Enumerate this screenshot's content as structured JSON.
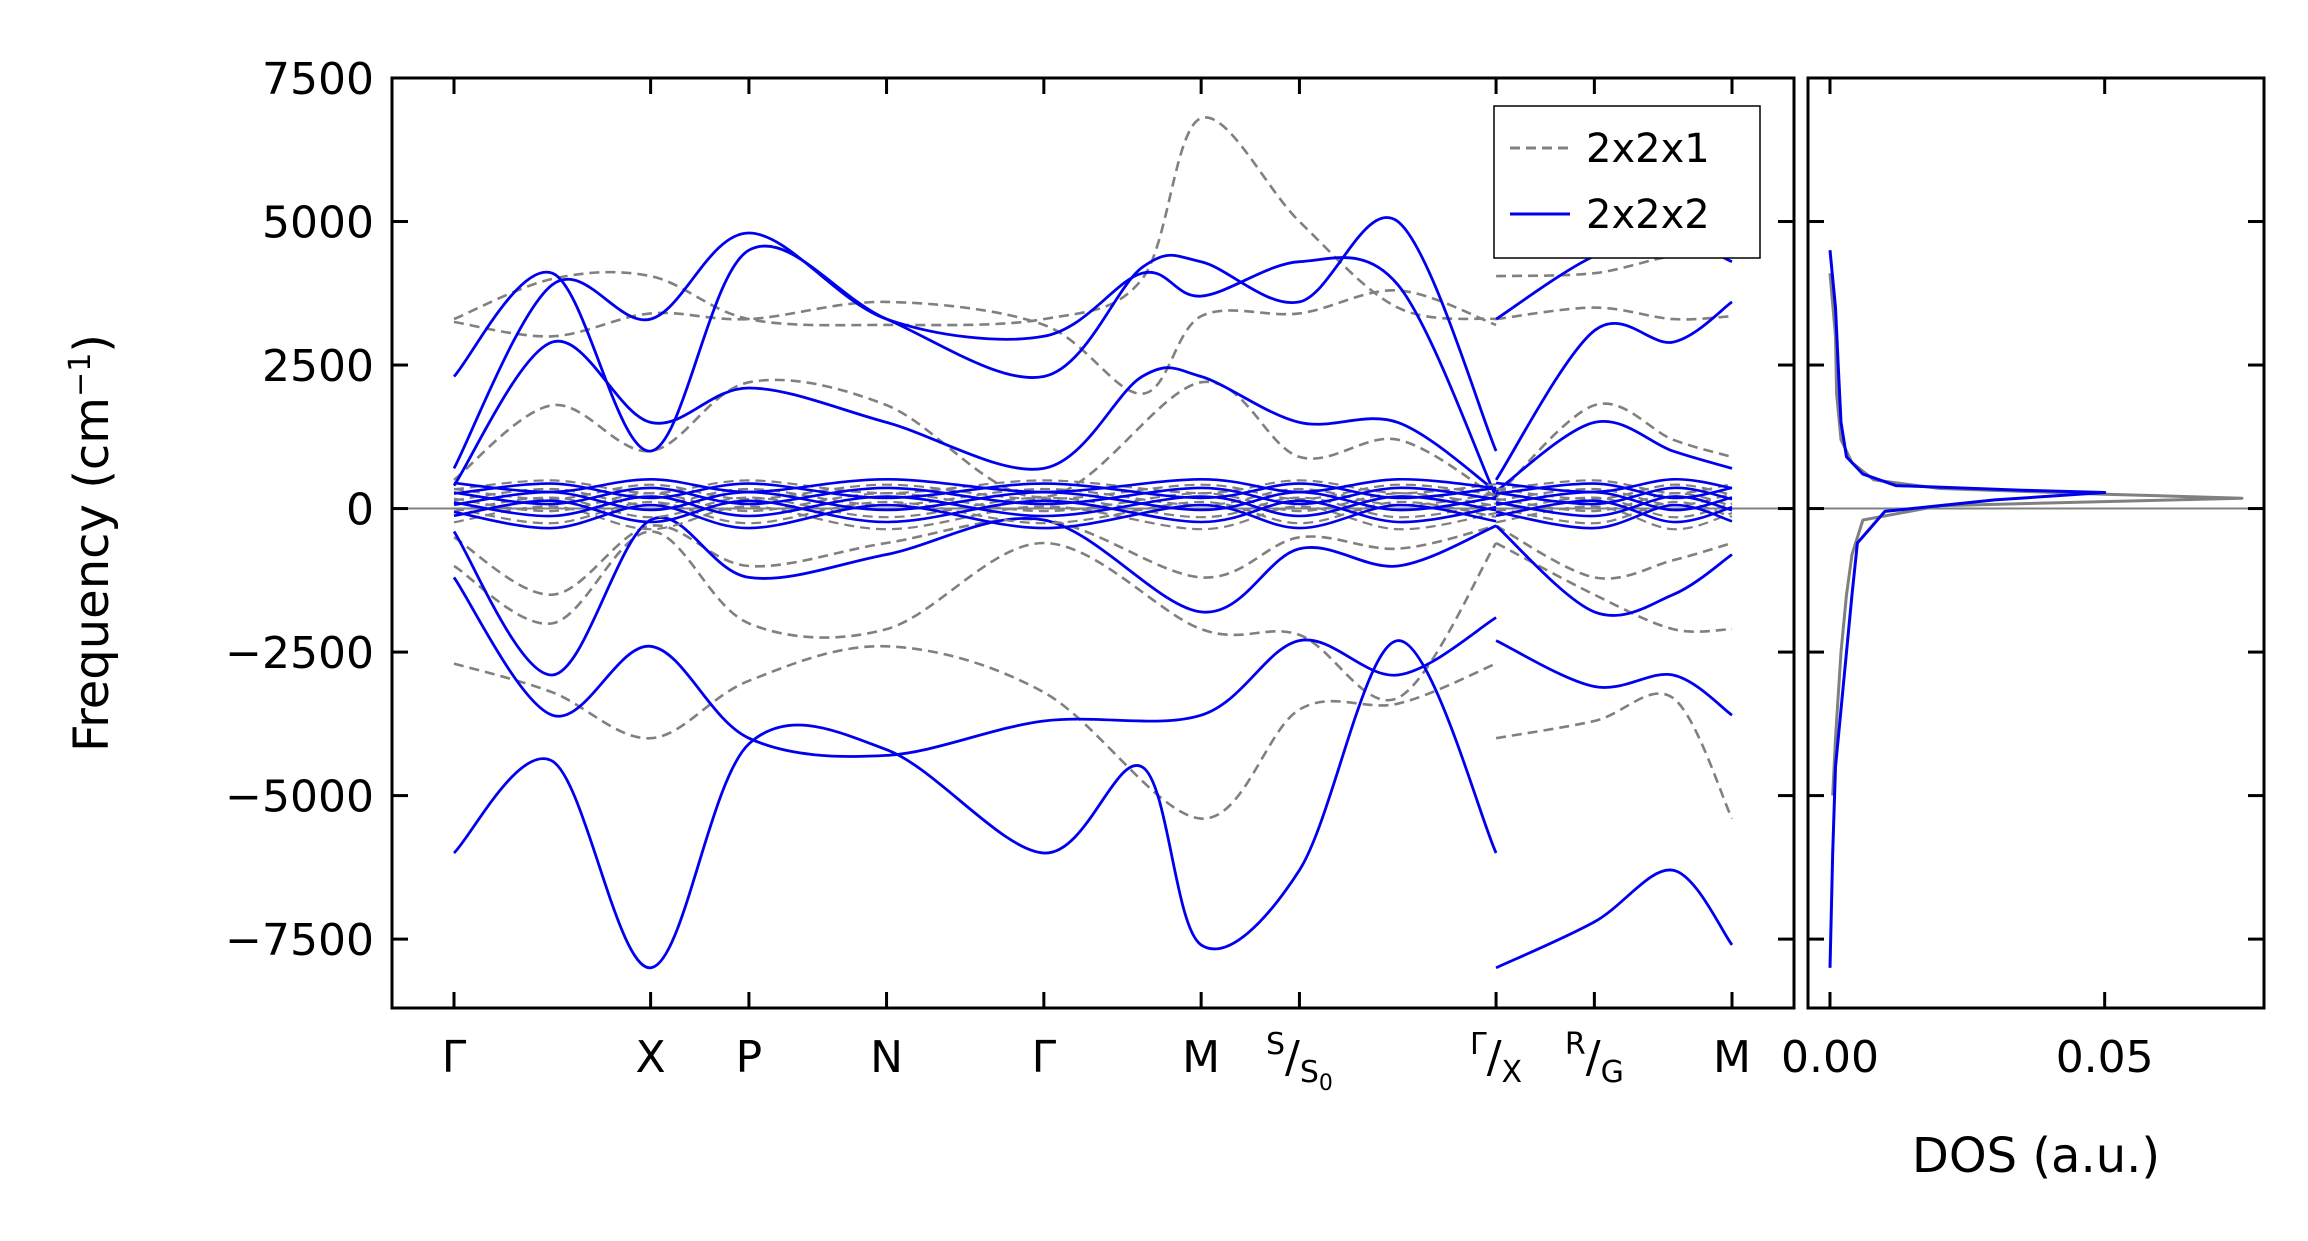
{
  "chart_data": [
    {
      "type": "line",
      "panel": "band-structure",
      "ylabel": "Frequency (cm",
      "ylabel_exponent": "−1",
      "ylabel_close": ")",
      "ylim": [
        -8700,
        7500
      ],
      "yticks": [
        7500,
        5000,
        2500,
        0,
        -2500,
        -5000,
        -7500
      ],
      "ytick_labels": [
        "7500",
        "5000",
        "2500",
        "0",
        "−2500",
        "−5000",
        "−7500"
      ],
      "grid": false,
      "legend_position": "top-right",
      "kpath_ticks": [
        {
          "label": "Γ",
          "x": 0.0
        },
        {
          "label": "X",
          "x": 1.0
        },
        {
          "label": "P",
          "x": 1.5
        },
        {
          "label": "N",
          "x": 2.2
        },
        {
          "label": "Γ",
          "x": 3.0
        },
        {
          "label": "M",
          "x": 3.8
        },
        {
          "label_main": "S",
          "label_sub": "S",
          "label_sub_index": "0",
          "x": 4.3
        },
        {
          "label_main": "Γ",
          "label_sub": "X",
          "x": 5.3
        },
        {
          "label_main": "R",
          "label_sub": "G",
          "x": 5.8
        },
        {
          "label": "M",
          "x": 6.5
        }
      ],
      "segment_breaks": [
        5.3
      ],
      "series": [
        {
          "name": "2x2x1",
          "color": "#808080",
          "style": "dashed",
          "bands": [
            {
              "x": [
                0,
                0.5,
                1.0,
                1.5,
                2.2,
                3.0,
                3.5,
                3.8,
                4.3,
                4.8,
                5.3
              ],
              "y": [
                3300,
                4000,
                4050,
                3300,
                3200,
                3300,
                4000,
                6800,
                5000,
                3500,
                3300
              ]
            },
            {
              "x": [
                5.3,
                5.8,
                6.2,
                6.5
              ],
              "y": [
                4050,
                4100,
                4400,
                4400
              ]
            },
            {
              "x": [
                0,
                0.5,
                1.0,
                1.5,
                2.2,
                3.0,
                3.5,
                3.8,
                4.3,
                4.8,
                5.3
              ],
              "y": [
                3250,
                3000,
                3400,
                3300,
                3600,
                3200,
                2000,
                3350,
                3400,
                3800,
                3200
              ]
            },
            {
              "x": [
                5.3,
                5.8,
                6.2,
                6.5
              ],
              "y": [
                3300,
                3500,
                3300,
                3350
              ]
            },
            {
              "x": [
                0,
                0.5,
                1.0,
                1.5,
                2.2,
                3.0,
                3.8,
                4.3,
                4.8,
                5.3
              ],
              "y": [
                500,
                1800,
                1000,
                2200,
                1800,
                200,
                2200,
                900,
                1200,
                200
              ]
            },
            {
              "x": [
                5.3,
                5.8,
                6.2,
                6.5
              ],
              "y": [
                200,
                1800,
                1200,
                900
              ]
            },
            {
              "x": [
                0,
                0.5,
                1.0,
                1.5,
                2.2,
                3.0,
                3.8,
                4.3,
                4.8,
                5.3
              ],
              "y": [
                -500,
                -1500,
                -300,
                -1000,
                -600,
                -200,
                -1200,
                -500,
                -700,
                -300
              ]
            },
            {
              "x": [
                5.3,
                5.8,
                6.2,
                6.5
              ],
              "y": [
                -300,
                -1200,
                -900,
                -600
              ]
            },
            {
              "x": [
                0,
                0.5,
                1.0,
                1.5,
                2.2,
                3.0,
                3.8,
                4.3,
                4.8,
                5.3
              ],
              "y": [
                -1000,
                -2000,
                -400,
                -2000,
                -2100,
                -600,
                -2100,
                -2200,
                -3300,
                -600
              ]
            },
            {
              "x": [
                5.3,
                5.8,
                6.2,
                6.5
              ],
              "y": [
                -600,
                -1500,
                -2100,
                -2100
              ]
            },
            {
              "x": [
                0,
                0.5,
                1.0,
                1.5,
                2.2,
                3.0,
                3.8,
                4.3,
                4.8,
                5.3
              ],
              "y": [
                -2700,
                -3200,
                -4000,
                -3000,
                -2400,
                -3200,
                -5400,
                -3500,
                -3400,
                -2700
              ]
            },
            {
              "x": [
                5.3,
                5.8,
                6.2,
                6.5
              ],
              "y": [
                -4000,
                -3700,
                -3300,
                -5400
              ]
            }
          ]
        },
        {
          "name": "2x2x2",
          "color": "#0000ee",
          "style": "solid",
          "bands": [
            {
              "x": [
                0,
                0.5,
                1.0,
                1.5,
                2.2,
                3.0,
                3.5,
                3.8,
                4.3,
                4.8,
                5.3
              ],
              "y": [
                2300,
                4100,
                1000,
                4500,
                3300,
                2300,
                4200,
                4300,
                3600,
                5000,
                1000
              ]
            },
            {
              "x": [
                5.3,
                5.8,
                6.2,
                6.5
              ],
              "y": [
                3300,
                4400,
                4700,
                4300
              ]
            },
            {
              "x": [
                0,
                0.5,
                1.0,
                1.5,
                2.2,
                3.0,
                3.5,
                3.8,
                4.3,
                4.8,
                5.3
              ],
              "y": [
                700,
                3900,
                3300,
                4800,
                3300,
                3000,
                4100,
                3700,
                4300,
                3900,
                200
              ]
            },
            {
              "x": [
                5.3,
                5.8,
                6.2,
                6.5
              ],
              "y": [
                500,
                3100,
                2900,
                3600
              ]
            },
            {
              "x": [
                0,
                0.5,
                1.0,
                1.5,
                2.2,
                3.0,
                3.5,
                3.8,
                4.3,
                4.8,
                5.3
              ],
              "y": [
                400,
                2900,
                1500,
                2100,
                1500,
                700,
                2300,
                2300,
                1500,
                1500,
                300
              ]
            },
            {
              "x": [
                5.3,
                5.8,
                6.2,
                6.5
              ],
              "y": [
                300,
                1500,
                1000,
                700
              ]
            },
            {
              "x": [
                0,
                0.5,
                1.0,
                1.5,
                2.2,
                3.0,
                3.8,
                4.3,
                4.8,
                5.3
              ],
              "y": [
                -400,
                -2900,
                -200,
                -1200,
                -800,
                -200,
                -1800,
                -700,
                -1000,
                -300
              ]
            },
            {
              "x": [
                5.3,
                5.8,
                6.2,
                6.5
              ],
              "y": [
                -300,
                -1800,
                -1500,
                -800
              ]
            },
            {
              "x": [
                0,
                0.5,
                1.0,
                1.5,
                2.2,
                3.0,
                3.8,
                4.3,
                4.8,
                5.3
              ],
              "y": [
                -1200,
                -3600,
                -2400,
                -4000,
                -4300,
                -3700,
                -3600,
                -2300,
                -2900,
                -1900
              ]
            },
            {
              "x": [
                5.3,
                5.8,
                6.2,
                6.5
              ],
              "y": [
                -2300,
                -3100,
                -2900,
                -3600
              ]
            },
            {
              "x": [
                0,
                0.5,
                1.0,
                1.5,
                2.2,
                3.0,
                3.5,
                3.8,
                4.3,
                4.8,
                5.3
              ],
              "y": [
                -6000,
                -4400,
                -8000,
                -4100,
                -4200,
                -6000,
                -4500,
                -7600,
                -6300,
                -2300,
                -6000
              ]
            },
            {
              "x": [
                5.3,
                5.8,
                6.2,
                6.5
              ],
              "y": [
                -8000,
                -7200,
                -6300,
                -7600
              ]
            }
          ]
        }
      ]
    },
    {
      "type": "line",
      "panel": "dos",
      "xlabel": "DOS (a.u.)",
      "xlim": [
        -0.004,
        0.079
      ],
      "xticks": [
        0.0,
        0.05
      ],
      "xtick_labels": [
        "0.00",
        "0.05"
      ],
      "ylim": [
        -8700,
        7500
      ],
      "series": [
        {
          "name": "2x2x1",
          "color": "#808080",
          "style": "solid",
          "x": [
            0.0,
            0.001,
            0.0012,
            0.002,
            0.004,
            0.008,
            0.02,
            0.05,
            0.075,
            0.02,
            0.006,
            0.004,
            0.003,
            0.002,
            0.001,
            0.0005
          ],
          "y": [
            4100,
            3000,
            2000,
            1200,
            800,
            500,
            350,
            250,
            180,
            50,
            -200,
            -800,
            -1500,
            -2500,
            -4000,
            -5000
          ]
        },
        {
          "name": "2x2x2",
          "color": "#0000ee",
          "style": "solid",
          "x": [
            0.0,
            0.001,
            0.0015,
            0.002,
            0.003,
            0.006,
            0.012,
            0.035,
            0.05,
            0.03,
            0.01,
            0.005,
            0.004,
            0.003,
            0.002,
            0.001,
            0.0005,
            0.0
          ],
          "y": [
            4500,
            3500,
            2500,
            1500,
            900,
            600,
            400,
            320,
            280,
            150,
            -50,
            -600,
            -1500,
            -2500,
            -3500,
            -4500,
            -6000,
            -8000
          ]
        }
      ]
    }
  ],
  "colors": {
    "series_2x2x1": "#808080",
    "series_2x2x2": "#0000ee",
    "zero_line": "#808080",
    "axes": "#000000"
  }
}
